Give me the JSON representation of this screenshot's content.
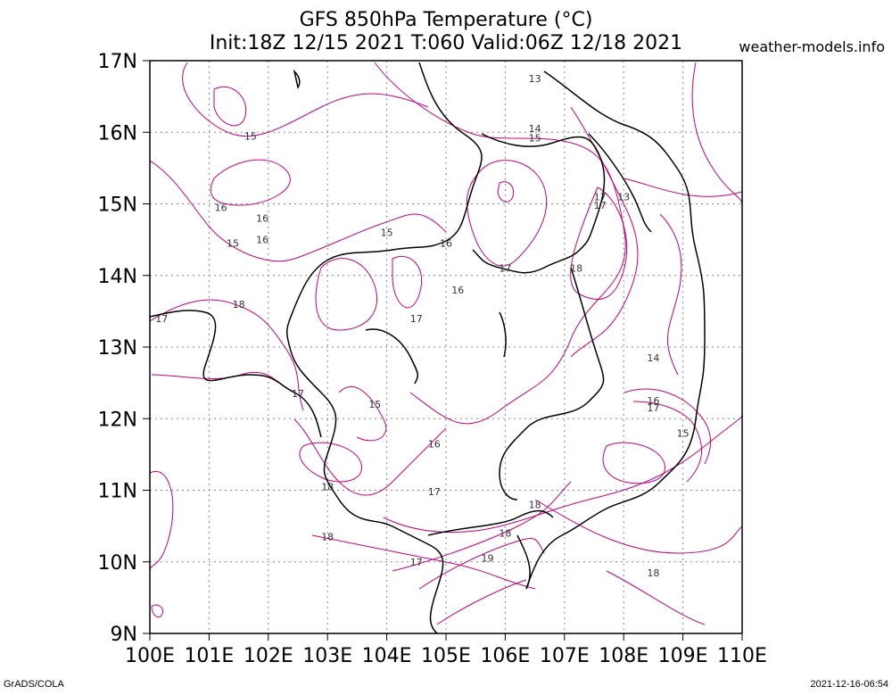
{
  "header": {
    "title_line1": "GFS 850hPa Temperature (°C)",
    "title_line2": "Init:18Z 12/15 2021 T:060 Valid:06Z 12/18 2021",
    "site": "weather-models.info"
  },
  "footer": {
    "left": "GrADS/COLA",
    "right": "2021-12-16-06:54"
  },
  "map": {
    "lat_labels": [
      "17N",
      "16N",
      "15N",
      "14N",
      "13N",
      "12N",
      "11N",
      "10N",
      "9N"
    ],
    "lon_labels": [
      "100E",
      "101E",
      "102E",
      "103E",
      "104E",
      "105E",
      "106E",
      "107E",
      "108E",
      "109E",
      "110E"
    ],
    "lat_range": [
      9,
      17
    ],
    "lon_range": [
      100,
      110
    ],
    "contour_color": "#c8007c",
    "coast_color": "#000000",
    "contour_labels": [
      {
        "lon": 106.5,
        "lat": 16.75,
        "text": "13"
      },
      {
        "lon": 101.7,
        "lat": 15.95,
        "text": "15"
      },
      {
        "lon": 106.5,
        "lat": 16.05,
        "text": "14"
      },
      {
        "lon": 106.5,
        "lat": 15.92,
        "text": "15"
      },
      {
        "lon": 107.6,
        "lat": 15.1,
        "text": "17"
      },
      {
        "lon": 107.6,
        "lat": 14.98,
        "text": "17"
      },
      {
        "lon": 108.0,
        "lat": 15.1,
        "text": "13"
      },
      {
        "lon": 101.2,
        "lat": 14.95,
        "text": "16"
      },
      {
        "lon": 101.9,
        "lat": 14.8,
        "text": "16"
      },
      {
        "lon": 101.4,
        "lat": 14.45,
        "text": "15"
      },
      {
        "lon": 101.9,
        "lat": 14.5,
        "text": "16"
      },
      {
        "lon": 104.0,
        "lat": 14.6,
        "text": "15"
      },
      {
        "lon": 105.0,
        "lat": 14.45,
        "text": "16"
      },
      {
        "lon": 106.0,
        "lat": 14.1,
        "text": "17"
      },
      {
        "lon": 107.2,
        "lat": 14.1,
        "text": "18"
      },
      {
        "lon": 105.2,
        "lat": 13.8,
        "text": "16"
      },
      {
        "lon": 101.5,
        "lat": 13.6,
        "text": "18"
      },
      {
        "lon": 104.5,
        "lat": 13.4,
        "text": "17"
      },
      {
        "lon": 100.2,
        "lat": 13.4,
        "text": "17"
      },
      {
        "lon": 108.5,
        "lat": 12.85,
        "text": "14"
      },
      {
        "lon": 102.5,
        "lat": 12.35,
        "text": "17"
      },
      {
        "lon": 103.8,
        "lat": 12.2,
        "text": "15"
      },
      {
        "lon": 108.5,
        "lat": 12.25,
        "text": "16"
      },
      {
        "lon": 108.5,
        "lat": 12.15,
        "text": "17"
      },
      {
        "lon": 109.0,
        "lat": 11.8,
        "text": "15"
      },
      {
        "lon": 104.8,
        "lat": 11.65,
        "text": "16"
      },
      {
        "lon": 103.0,
        "lat": 11.05,
        "text": "18"
      },
      {
        "lon": 104.8,
        "lat": 10.98,
        "text": "17"
      },
      {
        "lon": 106.5,
        "lat": 10.8,
        "text": "18"
      },
      {
        "lon": 106.0,
        "lat": 10.4,
        "text": "18"
      },
      {
        "lon": 103.0,
        "lat": 10.35,
        "text": "18"
      },
      {
        "lon": 104.5,
        "lat": 10.0,
        "text": "17"
      },
      {
        "lon": 105.7,
        "lat": 10.05,
        "text": "19"
      },
      {
        "lon": 108.5,
        "lat": 9.85,
        "text": "18"
      }
    ]
  }
}
